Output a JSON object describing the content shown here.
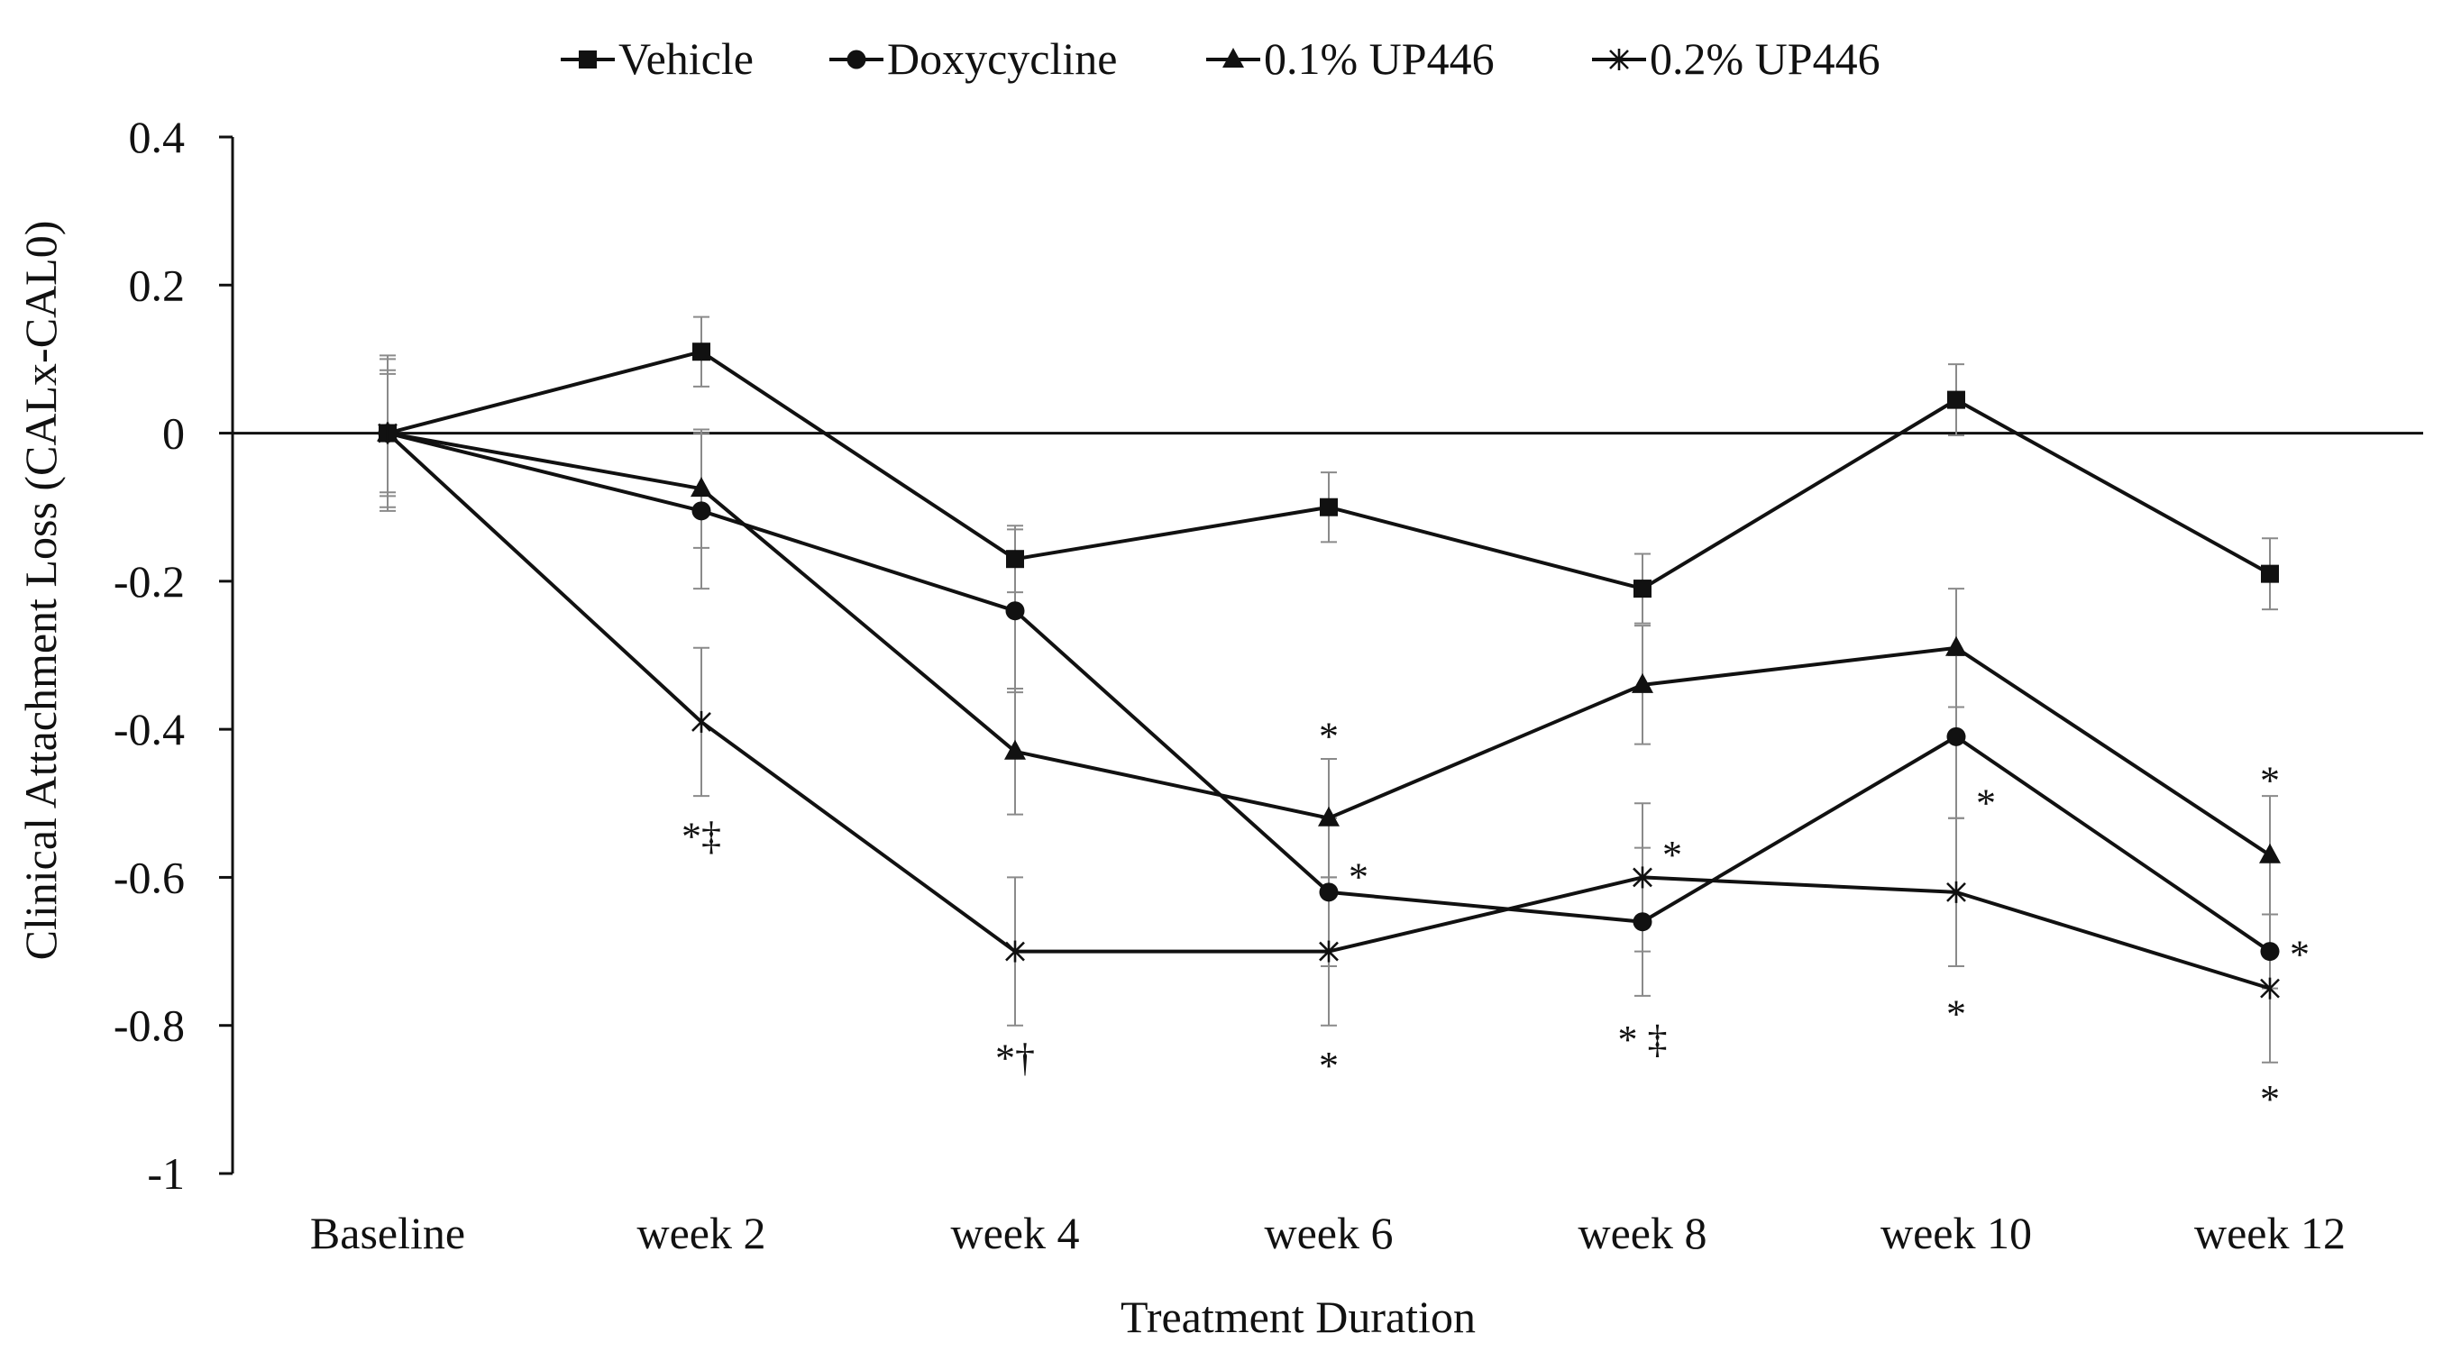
{
  "chart_data": {
    "type": "line",
    "title": "",
    "xlabel": "Treatment Duration",
    "ylabel": "Clinical Attachment Loss (CALx-CAL0)",
    "ylim": [
      -1,
      0.4
    ],
    "yticks": [
      "0.4",
      "0.2",
      "0",
      "-0.2",
      "-0.4",
      "-0.6",
      "-0.8",
      "-1"
    ],
    "ytick_values": [
      0.4,
      0.2,
      0,
      -0.2,
      -0.4,
      -0.6,
      -0.8,
      -1
    ],
    "categories": [
      "Baseline",
      "week 2",
      "week 4",
      "week 6",
      "week 8",
      "week 10",
      "week 12"
    ],
    "legend_position": "top-center",
    "series": [
      {
        "name": "Vehicle",
        "marker": "square",
        "values": [
          0,
          0.11,
          -0.17,
          -0.1,
          -0.21,
          0.045,
          -0.19
        ],
        "errors": [
          0.105,
          0.047,
          0.045,
          0.047,
          0.047,
          0.048,
          0.048
        ]
      },
      {
        "name": "Doxycycline",
        "marker": "circle",
        "values": [
          0,
          -0.105,
          -0.24,
          -0.62,
          -0.66,
          -0.41,
          -0.7
        ],
        "errors": [
          0.1,
          0.105,
          0.11,
          0.1,
          0.1,
          0.11,
          0.05
        ]
      },
      {
        "name": "0.1% UP446",
        "marker": "triangle",
        "values": [
          0,
          -0.075,
          -0.43,
          -0.52,
          -0.34,
          -0.29,
          -0.57
        ],
        "errors": [
          0.08,
          0.08,
          0.085,
          0.08,
          0.08,
          0.08,
          0.08
        ]
      },
      {
        "name": "0.2% UP446",
        "marker": "star",
        "values": [
          0,
          -0.39,
          -0.7,
          -0.7,
          -0.6,
          -0.62,
          -0.75
        ],
        "errors": [
          0.085,
          0.1,
          0.1,
          0.1,
          0.1,
          0.1,
          0.1
        ]
      }
    ],
    "annotations": [
      {
        "text": "*‡",
        "category": "week 2",
        "value": -0.545,
        "side": "center"
      },
      {
        "text": "*†",
        "category": "week 4",
        "value": -0.845,
        "side": "center"
      },
      {
        "text": "*",
        "category": "week 6",
        "value": -0.41,
        "side": "center"
      },
      {
        "text": "*",
        "category": "week 6",
        "value": -0.6,
        "side": "right"
      },
      {
        "text": "*",
        "category": "week 6",
        "value": -0.855,
        "side": "center"
      },
      {
        "text": "*",
        "category": "week 8",
        "value": -0.57,
        "side": "right"
      },
      {
        "text": "* ‡",
        "category": "week 8",
        "value": -0.82,
        "side": "center"
      },
      {
        "text": "*",
        "category": "week 10",
        "value": -0.5,
        "side": "right"
      },
      {
        "text": "*",
        "category": "week 10",
        "value": -0.785,
        "side": "center"
      },
      {
        "text": "*",
        "category": "week 12",
        "value": -0.47,
        "side": "center"
      },
      {
        "text": "*",
        "category": "week 12",
        "value": -0.705,
        "side": "right"
      },
      {
        "text": "*",
        "category": "week 12",
        "value": -0.9,
        "side": "center"
      }
    ]
  }
}
